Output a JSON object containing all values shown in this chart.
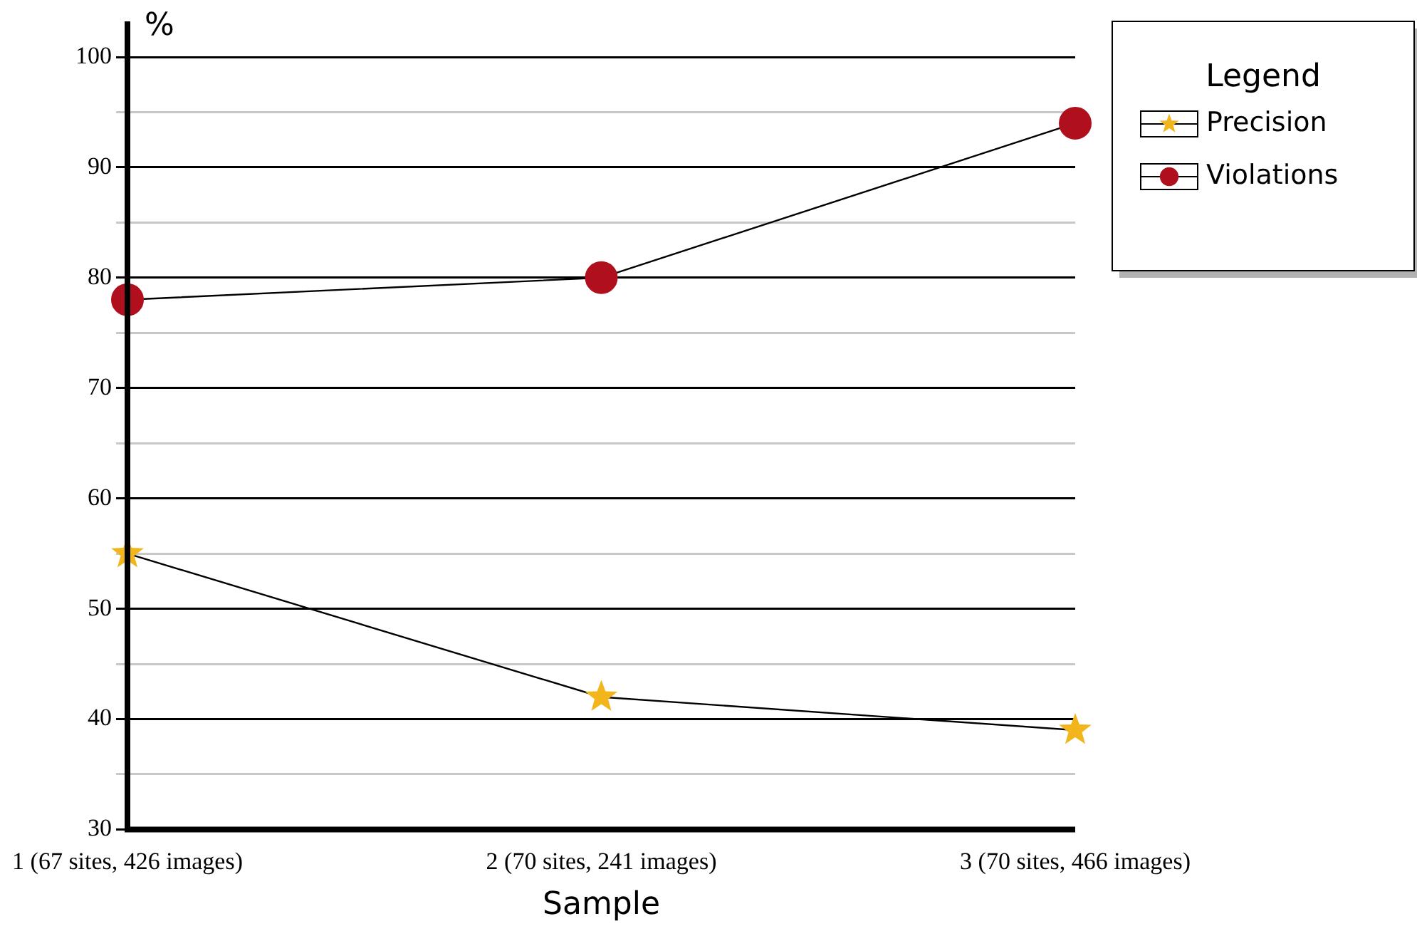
{
  "chart_data": {
    "type": "line",
    "ylabel": "%",
    "xlabel": "Sample",
    "categories": [
      "1 (67 sites, 426 images)",
      "2 (70 sites, 241 images)",
      "3 (70 sites, 466 images)"
    ],
    "series": [
      {
        "name": "Precision",
        "color": "#f2b51c",
        "marker": "star",
        "values": [
          55,
          42,
          39
        ]
      },
      {
        "name": "Violations",
        "color": "#b0101e",
        "marker": "circle",
        "values": [
          78,
          80,
          94
        ]
      }
    ],
    "ylim": [
      30,
      100
    ],
    "yticks": [
      30,
      {
        "value": 35,
        "label": null
      },
      40,
      {
        "value": 45,
        "label": null
      },
      50,
      {
        "value": 55,
        "label": null
      },
      60,
      {
        "value": 65,
        "label": null
      },
      70,
      {
        "value": 75,
        "label": null
      },
      80,
      {
        "value": 85,
        "label": null
      },
      90,
      {
        "value": 95,
        "label": null
      },
      100
    ],
    "grid": "y",
    "legend": "top right",
    "legend_title": "Legend",
    "line_style": "solid"
  }
}
